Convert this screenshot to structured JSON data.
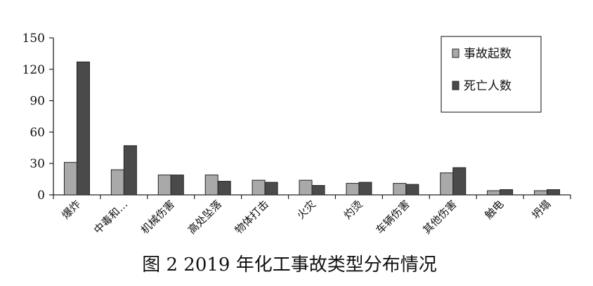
{
  "chart_data": {
    "type": "bar",
    "title": "图 2   2019 年化工事故类型分布情况",
    "xlabel": "",
    "ylabel": "",
    "ylim": [
      0,
      150
    ],
    "yticks": [
      0,
      30,
      60,
      90,
      120,
      150
    ],
    "grid": false,
    "legend_position": "top-right",
    "categories": [
      "爆炸",
      "中毒和…",
      "机械伤害",
      "高处坠落",
      "物体打击",
      "火灾",
      "灼烫",
      "车辆伤害",
      "其他伤害",
      "触电",
      "坍塌"
    ],
    "series": [
      {
        "name": "事故起数",
        "color": "#a9a9a9",
        "values": [
          31,
          24,
          19,
          19,
          14,
          14,
          11,
          11,
          21,
          4,
          4
        ]
      },
      {
        "name": "死亡人数",
        "color": "#4a4a4a",
        "values": [
          127,
          47,
          19,
          13,
          12,
          9,
          12,
          10,
          26,
          5,
          5
        ]
      }
    ]
  }
}
